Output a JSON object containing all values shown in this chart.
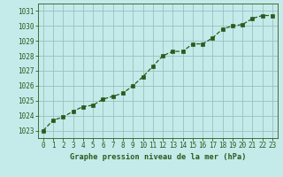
{
  "x": [
    0,
    1,
    2,
    3,
    4,
    5,
    6,
    7,
    8,
    9,
    10,
    11,
    12,
    13,
    14,
    15,
    16,
    17,
    18,
    19,
    20,
    21,
    22,
    23
  ],
  "y": [
    1023.0,
    1023.7,
    1023.9,
    1024.3,
    1024.6,
    1024.7,
    1025.1,
    1025.3,
    1025.5,
    1026.0,
    1026.6,
    1027.3,
    1028.0,
    1028.3,
    1028.3,
    1028.8,
    1028.8,
    1029.2,
    1029.8,
    1030.0,
    1030.1,
    1030.5,
    1030.7,
    1030.7
  ],
  "line_color": "#2d5a1b",
  "marker": "s",
  "marker_size": 2.5,
  "bg_color": "#c5eaea",
  "grid_color": "#9bbfbf",
  "xlabel": "Graphe pression niveau de la mer (hPa)",
  "xlabel_color": "#2d5a1b",
  "tick_color": "#2d5a1b",
  "ylim": [
    1022.5,
    1031.5
  ],
  "xlim": [
    -0.5,
    23.5
  ],
  "yticks": [
    1023,
    1024,
    1025,
    1026,
    1027,
    1028,
    1029,
    1030,
    1031
  ],
  "xticks": [
    0,
    1,
    2,
    3,
    4,
    5,
    6,
    7,
    8,
    9,
    10,
    11,
    12,
    13,
    14,
    15,
    16,
    17,
    18,
    19,
    20,
    21,
    22,
    23
  ],
  "tick_fontsize": 5.5,
  "xlabel_fontsize": 6.2
}
